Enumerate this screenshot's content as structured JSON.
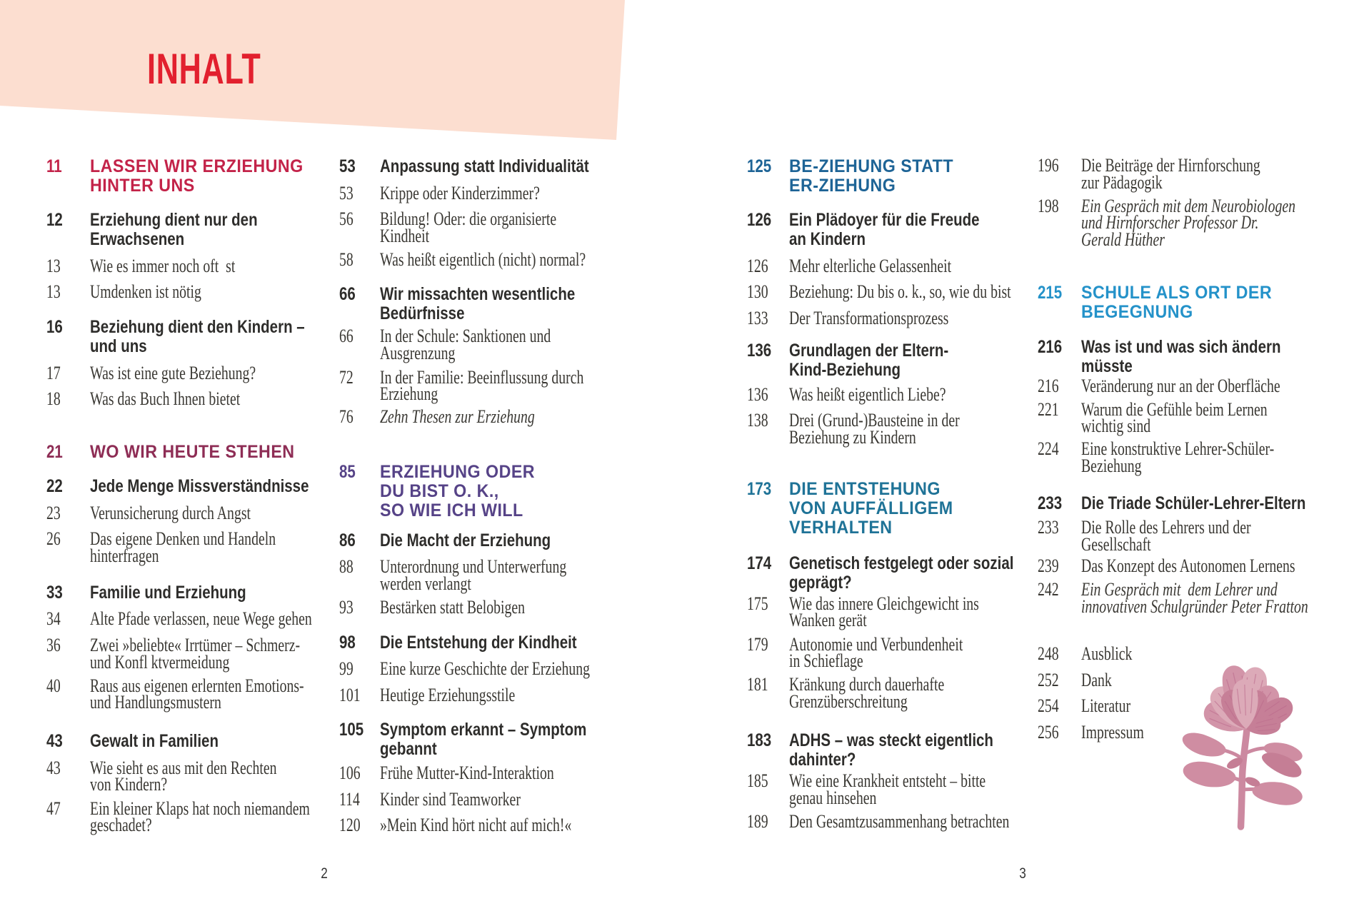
{
  "title": {
    "text": "INHALT",
    "color": "#e2202e"
  },
  "banner": {
    "color": "#fcded0"
  },
  "palette": {
    "accents": {
      "crimson": "#c32349",
      "berry": "#8e2d55",
      "violet": "#564387",
      "steel": "#1e6496",
      "teal": "#1f7397",
      "azure": "#2492c9"
    },
    "text_bold": "#2e2d2b",
    "text_serif": "#3a3833",
    "background": "#ffffff"
  },
  "page_footer": {
    "left_page_number": "2",
    "right_page_number": "3"
  },
  "columns": [
    {
      "id": "c1",
      "entries": [
        {
          "number": "11",
          "style": "heading",
          "lines": [
            "LASSEN WIR ERZIEHUNG",
            "HINTER UNS"
          ],
          "accent": "crimson"
        },
        {
          "number": "12",
          "style": "bold",
          "lines": [
            "Erziehung dient nur den",
            "Erwachsenen"
          ]
        },
        {
          "number": "13",
          "style": "serif",
          "lines": [
            "Wie es immer noch oft  st"
          ]
        },
        {
          "number": "13",
          "style": "serif",
          "lines": [
            "Umdenken ist nötig"
          ]
        },
        {
          "number": "16",
          "style": "bold",
          "lines": [
            "Beziehung dient den Kindern –",
            "und uns"
          ]
        },
        {
          "number": "17",
          "style": "serif",
          "lines": [
            "Was ist eine gute Beziehung?"
          ]
        },
        {
          "number": "18",
          "style": "serif",
          "lines": [
            "Was das Buch Ihnen bietet"
          ]
        },
        {
          "number": "21",
          "style": "heading",
          "lines": [
            "WO WIR HEUTE STEHEN"
          ],
          "accent": "berry"
        },
        {
          "number": "22",
          "style": "bold",
          "lines": [
            "Jede Menge Missverständnisse"
          ]
        },
        {
          "number": "23",
          "style": "serif",
          "lines": [
            "Verunsicherung durch Angst"
          ]
        },
        {
          "number": "26",
          "style": "serif",
          "lines": [
            "Das eigene Denken und Handeln",
            "hinterfragen"
          ]
        },
        {
          "number": "33",
          "style": "bold",
          "lines": [
            "Familie und Erziehung"
          ]
        },
        {
          "number": "34",
          "style": "serif",
          "lines": [
            "Alte Pfade verlassen, neue Wege gehen"
          ]
        },
        {
          "number": "36",
          "style": "serif",
          "lines": [
            "Zwei »beliebte« Irrtümer – Schmerz-",
            "und Konfl ktvermeidung"
          ]
        },
        {
          "number": "40",
          "style": "serif",
          "lines": [
            "Raus aus eigenen erlernten Emotions-",
            "und Handlungsmustern"
          ]
        },
        {
          "number": "43",
          "style": "bold",
          "lines": [
            "Gewalt in Familien"
          ]
        },
        {
          "number": "43",
          "style": "serif",
          "lines": [
            "Wie sieht es aus mit den Rechten",
            "von Kindern?"
          ]
        },
        {
          "number": "47",
          "style": "serif",
          "lines": [
            "Ein kleiner Klaps hat noch niemandem",
            "geschadet?"
          ]
        }
      ]
    },
    {
      "id": "c2",
      "entries": [
        {
          "number": "53",
          "style": "bold",
          "lines": [
            "Anpassung statt Individualität"
          ]
        },
        {
          "number": "53",
          "style": "serif",
          "lines": [
            "Krippe oder Kinderzimmer?"
          ]
        },
        {
          "number": "56",
          "style": "serif",
          "lines": [
            "Bildung! Oder: die organisierte",
            "Kindheit"
          ]
        },
        {
          "number": "58",
          "style": "serif",
          "lines": [
            "Was heißt eigentlich (nicht) normal?"
          ]
        },
        {
          "number": "66",
          "style": "bold",
          "lines": [
            "Wir missachten wesentliche",
            "Bedürfnisse"
          ]
        },
        {
          "number": "66",
          "style": "serif",
          "lines": [
            "In der Schule: Sanktionen und",
            "Ausgrenzung"
          ]
        },
        {
          "number": "72",
          "style": "serif",
          "lines": [
            "In der Familie: Beeinflussung durch",
            "Erziehung"
          ]
        },
        {
          "number": "76",
          "style": "italic",
          "lines": [
            "Zehn Thesen zur Erziehung"
          ]
        },
        {
          "number": "85",
          "style": "heading",
          "lines": [
            "ERZIEHUNG ODER",
            "DU BIST O. K.,",
            "SO WIE ICH WILL"
          ],
          "accent": "violet"
        },
        {
          "number": "86",
          "style": "bold",
          "lines": [
            "Die Macht der Erziehung"
          ]
        },
        {
          "number": "88",
          "style": "serif",
          "lines": [
            "Unterordnung und Unterwerfung",
            "werden verlangt"
          ]
        },
        {
          "number": "93",
          "style": "serif",
          "lines": [
            "Bestärken statt Belobigen"
          ]
        },
        {
          "number": "98",
          "style": "bold",
          "lines": [
            "Die Entstehung der Kindheit"
          ]
        },
        {
          "number": "99",
          "style": "serif",
          "lines": [
            "Eine kurze Geschichte der Erziehung"
          ]
        },
        {
          "number": "101",
          "style": "serif",
          "lines": [
            "Heutige Erziehungsstile"
          ]
        },
        {
          "number": "105",
          "style": "bold",
          "lines": [
            "Symptom erkannt – Symptom",
            "gebannt"
          ]
        },
        {
          "number": "106",
          "style": "serif",
          "lines": [
            "Frühe Mutter-Kind-Interaktion"
          ]
        },
        {
          "number": "114",
          "style": "serif",
          "lines": [
            "Kinder sind Teamworker"
          ]
        },
        {
          "number": "120",
          "style": "serif",
          "lines": [
            "»Mein Kind hört nicht auf mich!«"
          ]
        }
      ]
    },
    {
      "id": "c3",
      "entries": [
        {
          "number": "125",
          "style": "heading",
          "lines": [
            "BE-ZIEHUNG STATT",
            "ER-ZIEHUNG"
          ],
          "accent": "steel"
        },
        {
          "number": "126",
          "style": "bold",
          "lines": [
            "Ein Plädoyer für die Freude",
            "an Kindern"
          ]
        },
        {
          "number": "126",
          "style": "serif",
          "lines": [
            "Mehr elterliche Gelassenheit"
          ]
        },
        {
          "number": "130",
          "style": "serif",
          "lines": [
            "Beziehung: Du bis o. k., so, wie du bist"
          ]
        },
        {
          "number": "133",
          "style": "serif",
          "lines": [
            "Der Transformationsprozess"
          ]
        },
        {
          "number": "136",
          "style": "bold",
          "lines": [
            "Grundlagen der Eltern-",
            "Kind-Beziehung"
          ]
        },
        {
          "number": "136",
          "style": "serif",
          "lines": [
            "Was heißt eigentlich Liebe?"
          ]
        },
        {
          "number": "138",
          "style": "serif",
          "lines": [
            "Drei (Grund-)Bausteine in der",
            "Beziehung zu Kindern"
          ]
        },
        {
          "number": "173",
          "style": "heading",
          "lines": [
            "DIE ENTSTEHUNG",
            "VON AUFFÄLLIGEM",
            "VERHALTEN"
          ],
          "accent": "teal"
        },
        {
          "number": "174",
          "style": "bold",
          "lines": [
            "Genetisch festgelegt oder sozial",
            "geprägt?"
          ]
        },
        {
          "number": "175",
          "style": "serif",
          "lines": [
            "Wie das innere Gleichgewicht ins",
            "Wanken gerät"
          ]
        },
        {
          "number": "179",
          "style": "serif",
          "lines": [
            "Autonomie und Verbundenheit",
            "in Schieflage"
          ]
        },
        {
          "number": "181",
          "style": "serif",
          "lines": [
            "Kränkung durch dauerhafte",
            "Grenzüberschreitung"
          ]
        },
        {
          "number": "183",
          "style": "bold",
          "lines": [
            "ADHS – was steckt eigentlich",
            "dahinter?"
          ]
        },
        {
          "number": "185",
          "style": "serif",
          "lines": [
            "Wie eine Krankheit entsteht – bitte",
            "genau hinsehen"
          ]
        },
        {
          "number": "189",
          "style": "serif",
          "lines": [
            "Den Gesamtzusammenhang betrachten"
          ]
        }
      ]
    },
    {
      "id": "c4",
      "entries": [
        {
          "number": "196",
          "style": "serif",
          "lines": [
            "Die Beiträge der Hirnforschung",
            "zur Pädagogik"
          ]
        },
        {
          "number": "198",
          "style": "italic",
          "lines": [
            "Ein Gespräch mit dem Neurobiologen",
            "und Hirnforscher Professor Dr.",
            "Gerald Hüther"
          ]
        },
        {
          "number": "215",
          "style": "heading",
          "lines": [
            "SCHULE ALS ORT DER",
            "BEGEGNUNG"
          ],
          "accent": "azure"
        },
        {
          "number": "216",
          "style": "bold",
          "lines": [
            "Was ist und was sich ändern",
            "müsste"
          ]
        },
        {
          "number": "216",
          "style": "serif",
          "lines": [
            "Veränderung nur an der Oberfläche"
          ]
        },
        {
          "number": "221",
          "style": "serif",
          "lines": [
            "Warum die Gefühle beim Lernen",
            "wichtig sind"
          ]
        },
        {
          "number": "224",
          "style": "serif",
          "lines": [
            "Eine konstruktive Lehrer-Schüler-",
            "Beziehung"
          ]
        },
        {
          "number": "233",
          "style": "bold",
          "lines": [
            "Die Triade Schüler-Lehrer-Eltern"
          ]
        },
        {
          "number": "233",
          "style": "serif",
          "lines": [
            "Die Rolle des Lehrers und der",
            "Gesellschaft"
          ]
        },
        {
          "number": "239",
          "style": "serif",
          "lines": [
            "Das Konzept des Autonomen Lernens"
          ]
        },
        {
          "number": "242",
          "style": "italic",
          "lines": [
            "Ein Gespräch mit  dem Lehrer und",
            "innovativen Schulgründer Peter Fratton"
          ]
        },
        {
          "number": "248",
          "style": "serif",
          "lines": [
            "Ausblick"
          ]
        },
        {
          "number": "252",
          "style": "serif",
          "lines": [
            "Dank"
          ]
        },
        {
          "number": "254",
          "style": "serif",
          "lines": [
            "Literatur"
          ]
        },
        {
          "number": "256",
          "style": "serif",
          "lines": [
            "Impressum"
          ]
        }
      ]
    }
  ],
  "flower": {
    "petal_light": "#dcaab8",
    "petal_mid": "#d294a8",
    "petal_dark": "#c67f97",
    "vein": "#b9688a",
    "leaf": "#cf8da2",
    "leaf_dark": "#c57e95",
    "stem": "#cc89a0"
  }
}
